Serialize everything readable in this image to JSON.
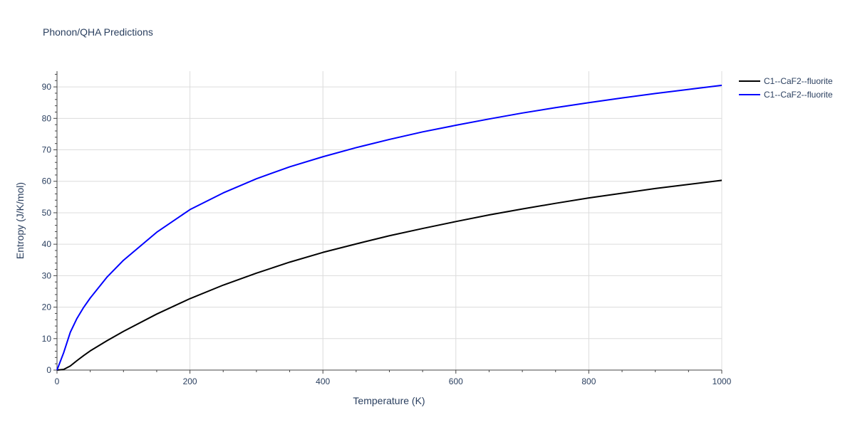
{
  "chart_data": {
    "type": "line",
    "title": "Phonon/QHA Predictions",
    "xlabel": "Temperature (K)",
    "ylabel": "Entropy (J/K/mol)",
    "xlim": [
      0,
      1000
    ],
    "ylim": [
      0,
      95
    ],
    "x_ticks": [
      0,
      200,
      400,
      600,
      800,
      1000
    ],
    "y_ticks": [
      0,
      10,
      20,
      30,
      40,
      50,
      60,
      70,
      80,
      90
    ],
    "grid": true,
    "legend_position": "top-right",
    "series": [
      {
        "name": "C1--CaF2--fluorite",
        "color": "#000000",
        "x": [
          0,
          10,
          20,
          30,
          40,
          50,
          75,
          100,
          150,
          200,
          250,
          300,
          350,
          400,
          450,
          500,
          550,
          600,
          650,
          700,
          750,
          800,
          850,
          900,
          950,
          1000
        ],
        "y": [
          0,
          0.2,
          1.3,
          3.0,
          4.6,
          6.1,
          9.3,
          12.3,
          17.8,
          22.7,
          27.0,
          30.8,
          34.3,
          37.4,
          40.1,
          42.7,
          45.0,
          47.2,
          49.3,
          51.2,
          53.0,
          54.7,
          56.2,
          57.7,
          59.0,
          60.3
        ]
      },
      {
        "name": "C1--CaF2--fluorite",
        "color": "#0000ff",
        "x": [
          0,
          10,
          20,
          30,
          40,
          50,
          75,
          100,
          150,
          200,
          250,
          300,
          350,
          400,
          450,
          500,
          550,
          600,
          650,
          700,
          750,
          800,
          850,
          900,
          950,
          1000
        ],
        "y": [
          0,
          5.5,
          12.0,
          16.4,
          19.9,
          22.9,
          29.5,
          34.9,
          43.8,
          51.0,
          56.3,
          60.8,
          64.6,
          67.8,
          70.7,
          73.3,
          75.7,
          77.8,
          79.8,
          81.7,
          83.4,
          85.0,
          86.5,
          87.9,
          89.2,
          90.5
        ]
      }
    ]
  }
}
